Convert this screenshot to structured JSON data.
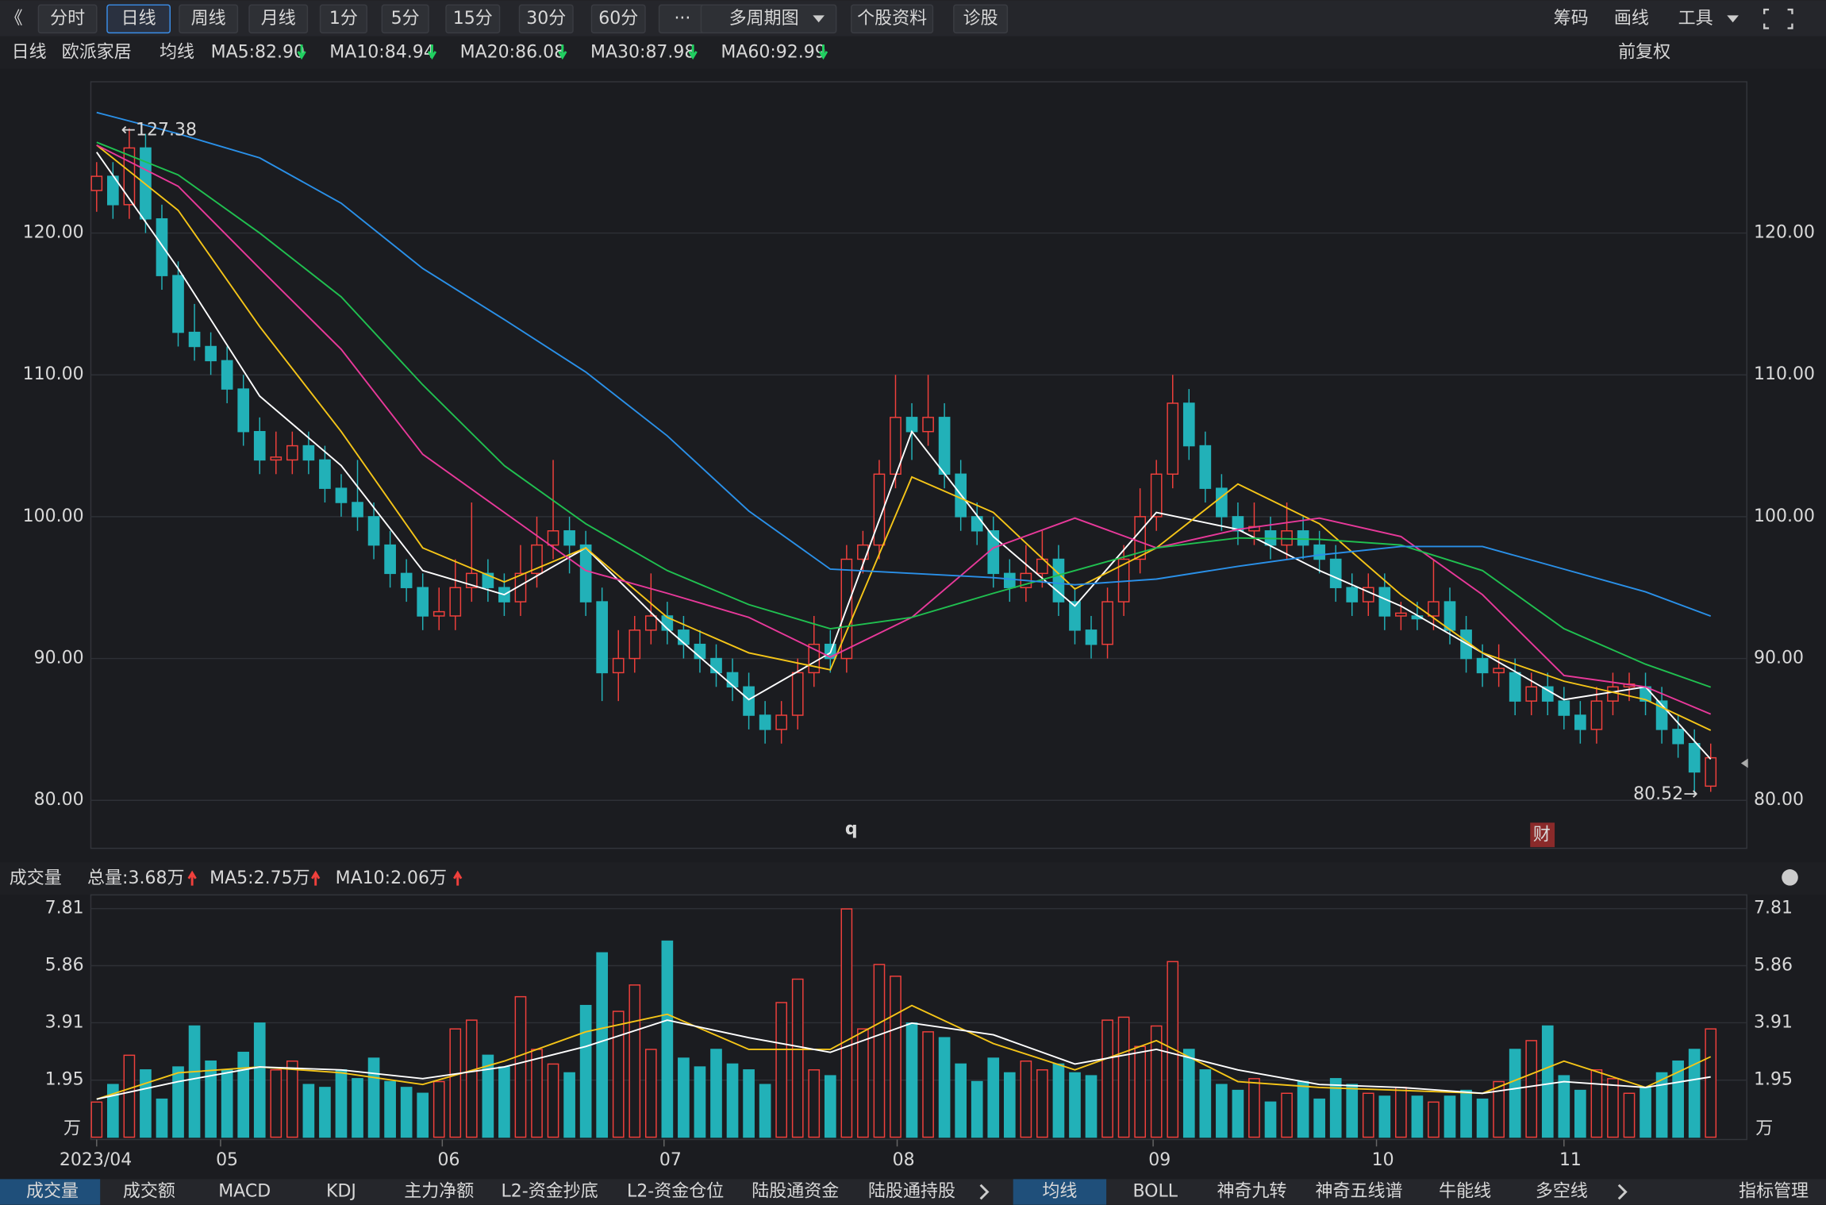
{
  "toolbar": {
    "left": [
      "《",
      "分时",
      "日线",
      "周线",
      "月线",
      "1分",
      "5分",
      "15分",
      "30分",
      "60分",
      "···",
      "多周期图",
      "个股资料",
      "诊股"
    ],
    "right": [
      "筹码",
      "画线",
      "工具"
    ]
  },
  "chart_data": [
    {
      "type": "candlestick",
      "period": "日线",
      "name": "欧派家居",
      "ma_label": "均线",
      "adjust": "前复权",
      "up_color": "#f0403c",
      "down_color": "#22b1b8",
      "ylim": [
        76.7,
        130.5
      ],
      "yticks": [
        {
          "value": 80,
          "label": "80.00"
        },
        {
          "value": 90,
          "label": "90.00"
        },
        {
          "value": 100,
          "label": "100.00"
        },
        {
          "value": 110,
          "label": "110.00"
        },
        {
          "value": 120,
          "label": "120.00"
        }
      ],
      "xticks": [
        {
          "value": 0,
          "label": "2023/04"
        },
        {
          "value": 7.6,
          "label": "05"
        },
        {
          "value": 21.2,
          "label": "06"
        },
        {
          "value": 34.8,
          "label": "07"
        },
        {
          "value": 49.1,
          "label": "08"
        },
        {
          "value": 64.8,
          "label": "09"
        },
        {
          "value": 78.5,
          "label": "10"
        },
        {
          "value": 90,
          "label": "11"
        }
      ],
      "ohlc": [
        [
          123,
          125,
          121.5,
          124
        ],
        [
          124,
          125,
          121,
          122
        ],
        [
          122,
          127.38,
          121,
          126
        ],
        [
          126,
          127,
          120,
          121
        ],
        [
          121,
          122,
          116,
          117
        ],
        [
          117,
          118,
          112,
          113
        ],
        [
          113,
          115,
          111,
          112
        ],
        [
          112,
          113,
          110,
          111
        ],
        [
          111,
          112,
          108,
          109
        ],
        [
          109,
          110,
          105,
          106
        ],
        [
          106,
          107,
          103,
          104
        ],
        [
          104,
          106,
          103,
          104.2
        ],
        [
          104,
          106,
          103,
          105
        ],
        [
          105,
          106,
          103,
          104
        ],
        [
          104,
          105,
          101,
          102
        ],
        [
          102,
          103,
          100,
          101
        ],
        [
          101,
          104,
          99,
          100
        ],
        [
          100,
          101,
          97,
          98
        ],
        [
          98,
          99,
          95,
          96
        ],
        [
          96,
          97,
          94,
          95
        ],
        [
          95,
          96,
          92,
          93
        ],
        [
          93,
          95,
          92,
          93.3
        ],
        [
          93,
          97,
          92,
          95
        ],
        [
          95,
          101,
          94,
          96
        ],
        [
          96,
          97,
          94,
          95
        ],
        [
          95,
          96,
          93,
          94
        ],
        [
          94,
          98,
          93,
          96
        ],
        [
          96,
          100,
          95,
          98
        ],
        [
          98,
          104,
          97,
          99
        ],
        [
          99,
          100,
          96,
          98
        ],
        [
          98,
          99,
          93,
          94
        ],
        [
          94,
          95,
          87,
          89
        ],
        [
          89,
          92,
          87,
          90
        ],
        [
          90,
          93,
          89,
          92
        ],
        [
          92,
          96,
          91,
          93
        ],
        [
          93,
          94,
          91,
          92
        ],
        [
          92,
          93,
          90,
          91
        ],
        [
          91,
          92,
          89,
          90
        ],
        [
          90,
          91,
          88,
          89
        ],
        [
          89,
          90,
          87,
          88
        ],
        [
          88,
          89,
          85,
          86
        ],
        [
          86,
          87,
          84,
          85
        ],
        [
          85,
          87,
          84,
          86
        ],
        [
          86,
          90,
          85,
          89
        ],
        [
          89,
          93,
          88,
          91
        ],
        [
          91,
          92,
          89,
          90
        ],
        [
          90,
          98,
          89,
          97
        ],
        [
          97,
          99,
          96,
          98
        ],
        [
          98,
          104,
          97,
          103
        ],
        [
          103,
          110,
          102,
          107
        ],
        [
          107,
          108,
          104,
          106
        ],
        [
          106,
          110,
          105,
          107
        ],
        [
          107,
          108,
          102,
          103
        ],
        [
          103,
          104,
          99,
          100
        ],
        [
          100,
          101,
          98,
          99
        ],
        [
          99,
          100,
          95,
          96
        ],
        [
          96,
          97,
          94,
          95
        ],
        [
          95,
          98,
          94,
          96
        ],
        [
          96,
          99,
          95,
          97
        ],
        [
          97,
          98,
          93,
          94
        ],
        [
          94,
          95,
          91,
          92
        ],
        [
          92,
          93,
          90,
          91
        ],
        [
          91,
          95,
          90,
          94
        ],
        [
          94,
          98,
          93,
          97
        ],
        [
          97,
          102,
          96,
          100
        ],
        [
          100,
          104,
          99,
          103
        ],
        [
          103,
          110,
          102,
          108
        ],
        [
          108,
          109,
          104,
          105
        ],
        [
          105,
          106,
          101,
          102
        ],
        [
          102,
          103,
          99,
          100
        ],
        [
          100,
          101,
          98,
          99
        ],
        [
          99,
          101,
          98,
          99.3
        ],
        [
          99,
          100,
          97,
          98
        ],
        [
          98,
          101,
          97,
          99
        ],
        [
          99,
          100,
          97,
          98
        ],
        [
          98,
          99,
          96,
          97
        ],
        [
          97,
          98,
          94,
          95
        ],
        [
          95,
          96,
          93,
          94
        ],
        [
          94,
          96,
          93,
          95
        ],
        [
          95,
          96,
          92,
          93
        ],
        [
          93,
          94,
          92,
          93.2
        ],
        [
          93,
          94,
          92,
          92.8
        ],
        [
          93,
          97,
          92,
          94
        ],
        [
          94,
          95,
          91,
          92
        ],
        [
          92,
          93,
          89,
          90
        ],
        [
          90,
          91,
          88,
          89
        ],
        [
          89,
          91,
          88,
          89.3
        ],
        [
          89,
          90,
          86,
          87
        ],
        [
          87,
          89,
          86,
          88
        ],
        [
          88,
          89,
          86,
          87
        ],
        [
          87,
          88,
          85,
          86
        ],
        [
          86,
          87,
          84,
          85
        ],
        [
          85,
          88,
          84,
          87
        ],
        [
          87,
          89,
          86,
          88
        ],
        [
          88,
          89,
          87,
          88.2
        ],
        [
          88,
          89,
          86,
          87
        ],
        [
          87,
          88,
          84,
          85
        ],
        [
          85,
          86,
          83,
          84
        ],
        [
          84,
          85,
          80.52,
          82
        ],
        [
          81,
          84,
          80.6,
          83
        ]
      ],
      "x": [
        0,
        5,
        10,
        15,
        20,
        25,
        30,
        35,
        40,
        45,
        50,
        55,
        60,
        65,
        70,
        75,
        80,
        85,
        90,
        95,
        99
      ],
      "series": [
        {
          "name": "MA5:82.90",
          "color": "#ffffff",
          "values": [
            125.7,
            117.5,
            108.5,
            103.6,
            96.2,
            94.5,
            97.8,
            92.1,
            87.1,
            90.4,
            106,
            98.6,
            93.7,
            100.3,
            99.1,
            96.2,
            93.7,
            90.4,
            87.1,
            88,
            82.9
          ]
        },
        {
          "name": "MA10:84.94",
          "color": "#f5c518",
          "values": [
            126.2,
            121.6,
            113.4,
            106,
            97.8,
            95.4,
            97.8,
            92.9,
            90.4,
            89.2,
            102.8,
            100.3,
            94.9,
            97.8,
            102.3,
            99.5,
            94.5,
            90.4,
            88.4,
            87.1,
            84.94
          ]
        },
        {
          "name": "MA20:86.08",
          "color": "#e8399a",
          "values": [
            126.2,
            123.3,
            117.5,
            111.8,
            104.4,
            100.3,
            96.2,
            94.6,
            92.9,
            90.1,
            92.9,
            97.8,
            99.9,
            97.8,
            99.1,
            99.9,
            98.6,
            94.5,
            88.8,
            88,
            86.08
          ]
        },
        {
          "name": "MA30:87.98",
          "color": "#20c050",
          "values": [
            126.4,
            124.1,
            120,
            115.5,
            109.3,
            103.6,
            99.5,
            96.2,
            93.8,
            92.1,
            92.9,
            94.6,
            96.2,
            97.8,
            98.5,
            98.4,
            98,
            96.2,
            92.1,
            89.6,
            87.98
          ]
        },
        {
          "name": "MA60:92.99",
          "color": "#2a90e8",
          "values": [
            128.5,
            127,
            125.3,
            122.1,
            117.5,
            113.9,
            110.2,
            105.7,
            100.4,
            96.3,
            96,
            95.7,
            95.2,
            95.6,
            96.5,
            97.3,
            97.9,
            97.9,
            96.3,
            94.7,
            92.99
          ]
        }
      ],
      "annotations": [
        "←127.38",
        "80.52→",
        "q",
        "财"
      ]
    },
    {
      "type": "bar",
      "title": "成交量",
      "total": "总量:3.68万",
      "unit": "万",
      "ylim": [
        0,
        8.2
      ],
      "yticks": [
        7.81,
        5.86,
        3.91,
        1.95
      ],
      "values": [
        1.2,
        1.8,
        2.8,
        2.3,
        1.3,
        2.4,
        3.8,
        2.6,
        2.3,
        2.9,
        3.9,
        2.3,
        2.6,
        1.8,
        1.7,
        2.3,
        2,
        2.7,
        1.9,
        1.7,
        1.5,
        1.9,
        3.7,
        4,
        2.8,
        2.4,
        4.8,
        3,
        2.5,
        2.2,
        4.5,
        6.3,
        4.3,
        5.2,
        3,
        6.7,
        2.7,
        2.4,
        3,
        2.5,
        2.3,
        1.8,
        4.6,
        5.4,
        2.3,
        2.1,
        7.8,
        3.7,
        5.9,
        5.5,
        3.9,
        3.6,
        3.4,
        2.5,
        1.9,
        2.7,
        2.2,
        2.6,
        2.3,
        2.5,
        2.2,
        2.1,
        4,
        4.1,
        3.1,
        3.8,
        6,
        3,
        2.3,
        1.8,
        1.6,
        2,
        1.2,
        1.5,
        1.9,
        1.3,
        2,
        1.8,
        1.5,
        1.4,
        1.7,
        1.4,
        1.2,
        1.4,
        1.6,
        1.3,
        1.9,
        3,
        3.3,
        3.8,
        2.1,
        1.6,
        2.3,
        2,
        1.5,
        1.7,
        2.2,
        2.6,
        3,
        3.7
      ],
      "series": [
        {
          "name": "MA5:2.75万",
          "color": "#f5c518",
          "values": [
            1.3,
            2.2,
            2.4,
            2.2,
            1.8,
            2.6,
            3.6,
            4.2,
            3,
            3,
            4.5,
            3.2,
            2.3,
            3.3,
            1.9,
            1.7,
            1.6,
            1.5,
            2.6,
            1.7,
            2.75
          ]
        },
        {
          "name": "MA10:2.06万",
          "color": "#ffffff",
          "values": [
            1.3,
            1.9,
            2.4,
            2.3,
            2,
            2.4,
            3.1,
            4,
            3.4,
            2.9,
            3.9,
            3.5,
            2.5,
            3,
            2.3,
            1.8,
            1.7,
            1.5,
            1.9,
            1.7,
            2.06
          ]
        }
      ]
    }
  ],
  "tabs": {
    "left": [
      "成交量",
      "成交额",
      "MACD",
      "KDJ",
      "主力净额",
      "L2-资金抄底",
      "L2-资金仓位",
      "陆股通资金",
      "陆股通持股"
    ],
    "right": [
      "均线",
      "BOLL",
      "神奇九转",
      "神奇五线谱",
      "牛能线",
      "多空线",
      "指标管理"
    ]
  }
}
